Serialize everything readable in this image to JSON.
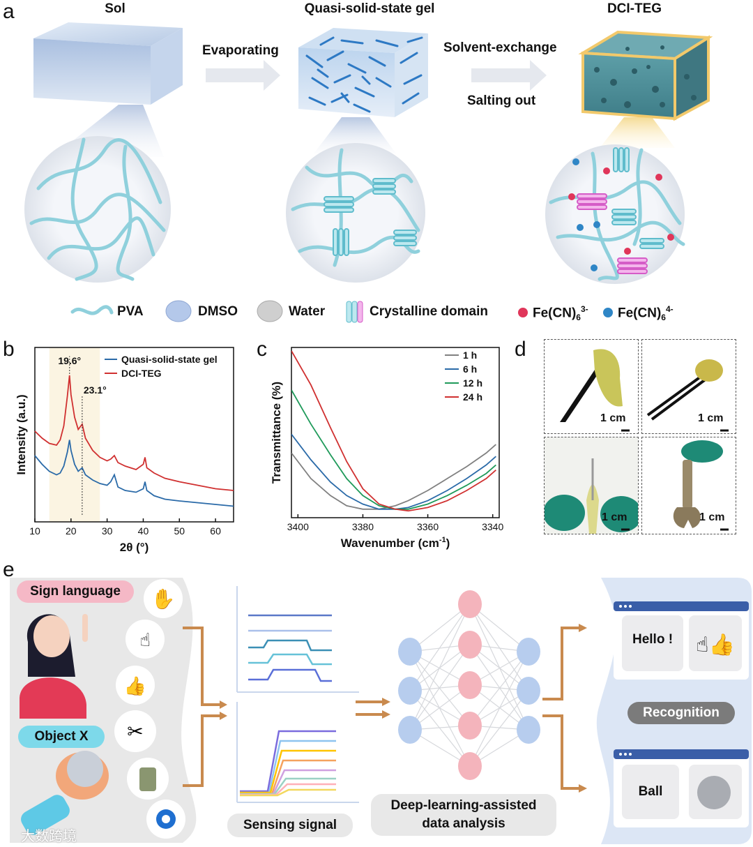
{
  "panels": {
    "a": "a",
    "b": "b",
    "c": "c",
    "d": "d",
    "e": "e"
  },
  "panel_a": {
    "stage_sol": "Sol",
    "stage_gel": "Quasi-solid-state gel",
    "stage_teg": "DCI-TEG",
    "arrow1": "Evaporating",
    "arrow2_top": "Solvent-exchange",
    "arrow2_bottom": "Salting out",
    "legend": {
      "pva": "PVA",
      "dmso": "DMSO",
      "water": "Water",
      "crystalline": "Crystalline domain",
      "fe3": "Fe(CN)",
      "fe3_sub": "6",
      "fe3_sup": "3-",
      "fe4": "Fe(CN)",
      "fe4_sub": "6",
      "fe4_sup": "4-"
    },
    "colors": {
      "sol": "#b9cbe6",
      "gel": "#4a90d0",
      "teg": "#5aa7b0",
      "teg_frame": "#f2c96b",
      "fe3": "#e0365a",
      "fe4": "#2f86c6",
      "crystal_cyan": "#9fdbe6",
      "crystal_pink": "#e27ad6"
    }
  },
  "chart_data": [
    {
      "type": "line",
      "xlabel": "2θ (°)",
      "ylabel": "Intensity (a.u.)",
      "xlim": [
        10,
        65
      ],
      "xticks": [
        "10",
        "20",
        "30",
        "40",
        "50",
        "60"
      ],
      "annotations": [
        "19.6°",
        "23.1°"
      ],
      "series": [
        {
          "name": "Quasi-solid-state gel",
          "color": "#2a6aa8",
          "x": [
            10,
            12,
            14,
            16,
            17,
            18,
            19,
            19.6,
            20,
            21,
            22,
            23.1,
            24,
            26,
            28,
            30,
            31,
            32,
            33,
            35,
            38,
            40,
            40.5,
            41,
            43,
            46,
            50,
            55,
            60,
            65
          ],
          "y": [
            0.38,
            0.33,
            0.29,
            0.27,
            0.28,
            0.32,
            0.4,
            0.47,
            0.41,
            0.33,
            0.29,
            0.31,
            0.27,
            0.24,
            0.22,
            0.21,
            0.23,
            0.27,
            0.2,
            0.18,
            0.17,
            0.19,
            0.23,
            0.18,
            0.15,
            0.13,
            0.12,
            0.11,
            0.1,
            0.09
          ]
        },
        {
          "name": "DCI-TEG",
          "color": "#d03030",
          "x": [
            10,
            12,
            14,
            16,
            17,
            18,
            19,
            19.6,
            20,
            21,
            22,
            23.1,
            24,
            26,
            28,
            30,
            31,
            32,
            33,
            35,
            38,
            40,
            40.5,
            41,
            43,
            46,
            50,
            55,
            60,
            65
          ],
          "y": [
            0.52,
            0.48,
            0.45,
            0.44,
            0.47,
            0.55,
            0.72,
            0.84,
            0.73,
            0.6,
            0.53,
            0.56,
            0.48,
            0.41,
            0.37,
            0.35,
            0.36,
            0.38,
            0.34,
            0.32,
            0.3,
            0.33,
            0.37,
            0.31,
            0.28,
            0.25,
            0.23,
            0.21,
            0.19,
            0.18
          ]
        }
      ]
    },
    {
      "type": "line",
      "xlabel": "Wavenumber (cm",
      "xlabel_sup": "-1",
      "xlabel_end": ")",
      "ylabel": "Transmittance (%)",
      "xlim": [
        3402,
        3338
      ],
      "xticks": [
        "3400",
        "3380",
        "3360",
        "3340"
      ],
      "series": [
        {
          "name": "1 h",
          "color": "#808080",
          "x": [
            3402,
            3396,
            3390,
            3385,
            3380,
            3375,
            3370,
            3366,
            3360,
            3354,
            3348,
            3342,
            3339
          ],
          "y": [
            0.38,
            0.23,
            0.13,
            0.07,
            0.05,
            0.05,
            0.07,
            0.1,
            0.16,
            0.23,
            0.3,
            0.38,
            0.43
          ]
        },
        {
          "name": "6 h",
          "color": "#2a6aa8",
          "x": [
            3402,
            3396,
            3390,
            3385,
            3380,
            3375,
            3370,
            3366,
            3360,
            3354,
            3348,
            3342,
            3339
          ],
          "y": [
            0.49,
            0.34,
            0.21,
            0.13,
            0.08,
            0.05,
            0.05,
            0.06,
            0.1,
            0.16,
            0.23,
            0.31,
            0.36
          ]
        },
        {
          "name": "12 h",
          "color": "#1f9a5a",
          "x": [
            3402,
            3396,
            3390,
            3385,
            3380,
            3375,
            3370,
            3366,
            3360,
            3354,
            3348,
            3342,
            3339
          ],
          "y": [
            0.75,
            0.55,
            0.37,
            0.23,
            0.13,
            0.07,
            0.05,
            0.05,
            0.08,
            0.13,
            0.19,
            0.26,
            0.31
          ]
        },
        {
          "name": "24 h",
          "color": "#d03030",
          "x": [
            3402,
            3396,
            3390,
            3385,
            3380,
            3375,
            3370,
            3366,
            3360,
            3354,
            3348,
            3342,
            3339
          ],
          "y": [
            0.98,
            0.78,
            0.53,
            0.33,
            0.17,
            0.08,
            0.05,
            0.04,
            0.06,
            0.1,
            0.16,
            0.23,
            0.28
          ]
        }
      ]
    }
  ],
  "panel_d": {
    "scale": "1 cm"
  },
  "panel_e": {
    "sign_language": "Sign language",
    "object_x": "Object X",
    "sensing_signal": "Sensing signal",
    "deep_learning_line1": "Deep-learning-assisted",
    "deep_learning_line2": "data analysis",
    "recognition": "Recognition",
    "result_hello": "Hello !",
    "result_ball": "Ball",
    "watermark": "大数跨境"
  }
}
